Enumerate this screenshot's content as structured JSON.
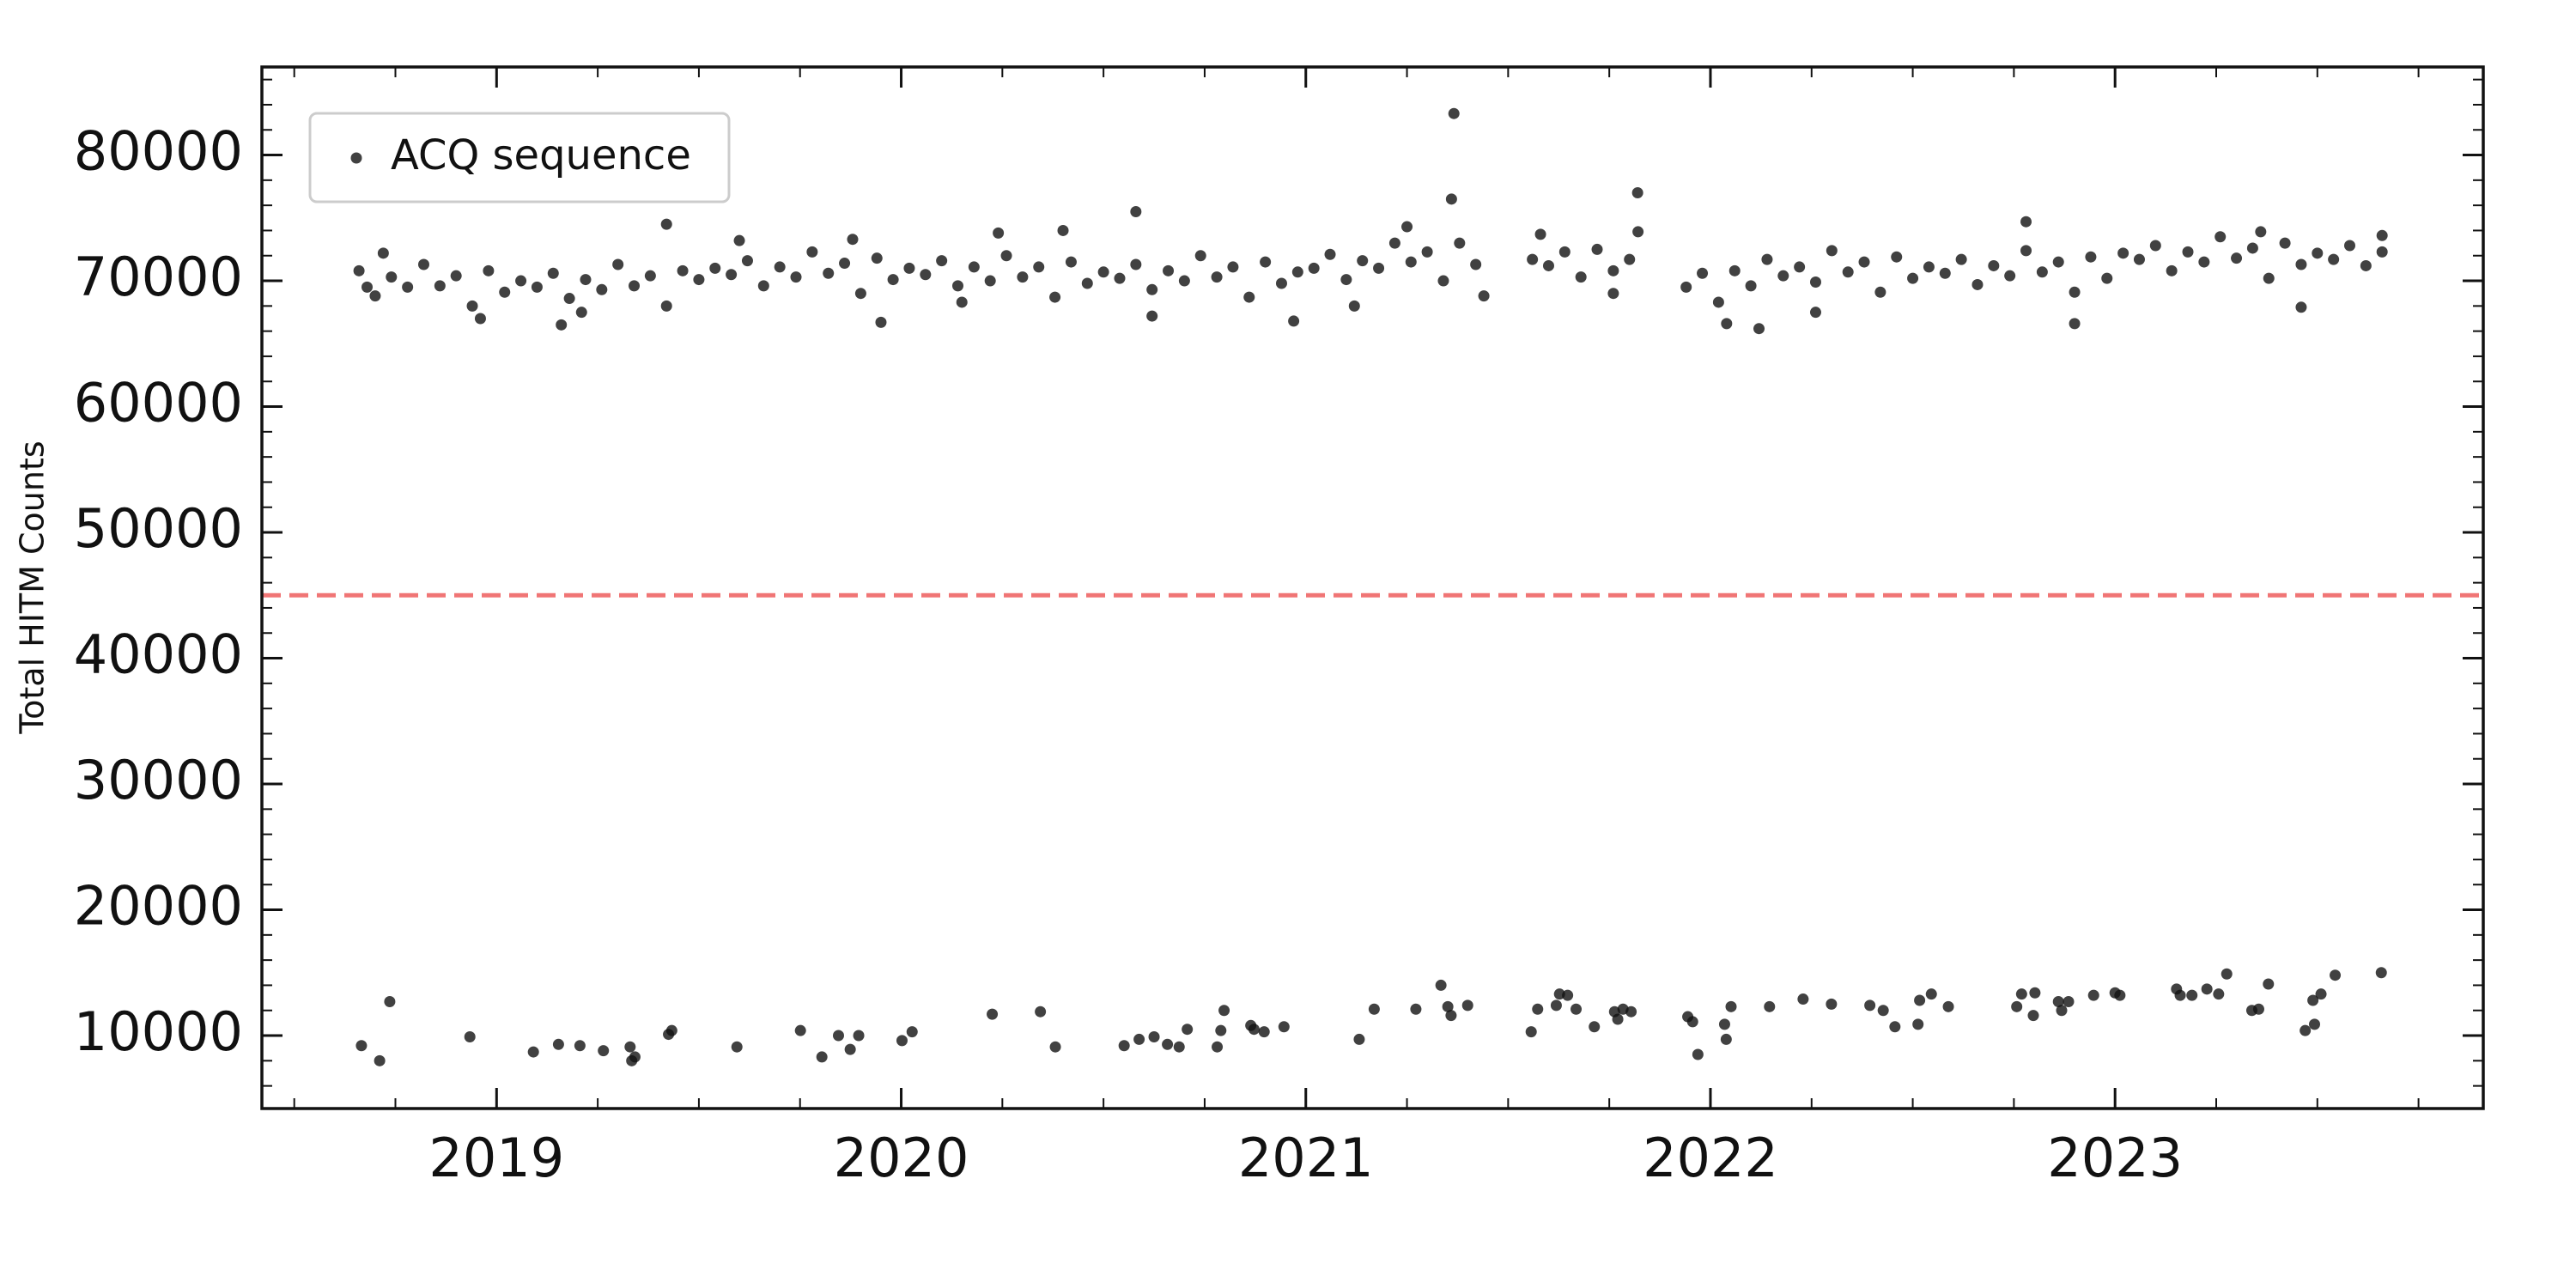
{
  "chart_data": {
    "type": "scatter",
    "ylabel": "Total HITM Counts",
    "xlim": [
      2018.42,
      2023.91
    ],
    "ylim": [
      4200,
      87000
    ],
    "xticks": [
      2019,
      2020,
      2021,
      2022,
      2023
    ],
    "yticks": [
      10000,
      20000,
      30000,
      40000,
      50000,
      60000,
      70000,
      80000
    ],
    "xminorticks": [
      2018.5,
      2018.75,
      2019.25,
      2019.5,
      2019.75,
      2020.25,
      2020.5,
      2020.75,
      2021.25,
      2021.5,
      2021.75,
      2022.25,
      2022.5,
      2022.75,
      2023.25,
      2023.5,
      2023.75
    ],
    "yminorticks": [
      6000,
      8000,
      12000,
      14000,
      16000,
      18000,
      22000,
      24000,
      26000,
      28000,
      32000,
      34000,
      36000,
      38000,
      42000,
      44000,
      46000,
      48000,
      52000,
      54000,
      56000,
      58000,
      62000,
      64000,
      66000,
      68000,
      72000,
      74000,
      76000,
      78000,
      82000,
      84000,
      86000
    ],
    "grid": false,
    "legend": "upper left",
    "hlines": [
      {
        "y": 45000,
        "color": "#f07575",
        "style": "dashed"
      }
    ],
    "series": [
      {
        "name": "ACQ sequence",
        "color": "#111111",
        "x": [
          2018.66,
          2018.7,
          2018.74,
          2018.78,
          2018.82,
          2018.86,
          2018.9,
          2018.94,
          2018.98,
          2019.02,
          2019.06,
          2019.1,
          2019.14,
          2019.18,
          2019.22,
          2019.26,
          2019.3,
          2019.34,
          2019.38,
          2019.42,
          2019.46,
          2019.5,
          2019.54,
          2019.58,
          2019.62,
          2019.66,
          2019.7,
          2019.74,
          2019.78,
          2019.82,
          2019.86,
          2019.9,
          2019.94,
          2019.98,
          2020.02,
          2020.06,
          2020.1,
          2020.14,
          2020.18,
          2020.22,
          2020.26,
          2020.3,
          2020.34,
          2020.38,
          2020.42,
          2020.46,
          2020.5,
          2020.54,
          2020.58,
          2020.62,
          2020.66,
          2020.7,
          2020.74,
          2020.78,
          2020.82,
          2020.86,
          2020.9,
          2020.94,
          2020.98,
          2021.02,
          2021.06,
          2021.1,
          2021.14,
          2021.18,
          2021.22,
          2021.26,
          2021.3,
          2021.34,
          2021.38,
          2021.42,
          2021.56,
          2021.6,
          2021.64,
          2021.68,
          2021.72,
          2021.76,
          2021.8,
          2021.94,
          2021.98,
          2022.02,
          2022.06,
          2022.1,
          2022.14,
          2022.18,
          2022.22,
          2022.26,
          2022.3,
          2022.34,
          2022.38,
          2022.42,
          2022.46,
          2022.5,
          2022.54,
          2022.58,
          2022.62,
          2022.66,
          2022.7,
          2022.74,
          2022.78,
          2022.82,
          2022.86,
          2022.9,
          2022.94,
          2022.98,
          2023.02,
          2023.06,
          2023.1,
          2023.14,
          2023.18,
          2023.22,
          2023.26,
          2023.3,
          2023.34,
          2023.38,
          2023.42,
          2023.46,
          2023.5,
          2023.54,
          2023.58,
          2023.62,
          2023.66,
          2018.68,
          2018.72,
          2018.96,
          2019.16,
          2019.21,
          2019.42,
          2019.6,
          2019.95,
          2019.88,
          2020.15,
          2020.24,
          2020.4,
          2020.58,
          2020.62,
          2020.97,
          2021.12,
          2021.25,
          2021.36,
          2021.366,
          2021.44,
          2021.58,
          2021.76,
          2021.82,
          2021.821,
          2022.04,
          2022.12,
          2022.26,
          2022.78,
          2022.9,
          2023.36,
          2023.46,
          2023.66,
          2018.666,
          2018.711,
          2018.736,
          2018.934,
          2019.091,
          2019.153,
          2019.206,
          2019.264,
          2019.33,
          2019.334,
          2019.342,
          2019.425,
          2019.433,
          2019.594,
          2019.751,
          2019.804,
          2019.845,
          2019.874,
          2019.895,
          2020.002,
          2020.027,
          2020.225,
          2020.344,
          2020.381,
          2020.551,
          2020.588,
          2020.625,
          2020.658,
          2020.687,
          2020.707,
          2020.781,
          2020.79,
          2020.798,
          2020.864,
          2020.872,
          2020.897,
          2020.946,
          2021.132,
          2021.169,
          2021.272,
          2021.334,
          2021.351,
          2021.359,
          2021.4,
          2021.557,
          2021.573,
          2021.619,
          2021.627,
          2021.647,
          2021.668,
          2021.713,
          2021.771,
          2021.763,
          2021.784,
          2021.804,
          2021.944,
          2021.956,
          2021.969,
          2022.035,
          2022.039,
          2022.051,
          2022.146,
          2022.229,
          2022.299,
          2022.394,
          2022.427,
          2022.456,
          2022.513,
          2022.517,
          2022.546,
          2022.588,
          2022.757,
          2022.769,
          2022.802,
          2022.798,
          2022.86,
          2022.868,
          2022.885,
          2022.947,
          2023.0,
          2023.012,
          2023.152,
          2023.161,
          2023.19,
          2023.227,
          2023.256,
          2023.276,
          2023.338,
          2023.355,
          2023.379,
          2023.47,
          2023.493,
          2023.489,
          2023.509,
          2023.544,
          2023.658
        ],
        "values": [
          70800,
          68800,
          70300,
          69500,
          71300,
          69600,
          70400,
          68000,
          70800,
          69100,
          70000,
          69500,
          70600,
          68600,
          70100,
          69300,
          71300,
          69600,
          70400,
          68000,
          70800,
          70100,
          71000,
          70500,
          71600,
          69600,
          71100,
          70300,
          72300,
          70600,
          71400,
          69000,
          71800,
          70100,
          71000,
          70500,
          71600,
          69600,
          71100,
          70000,
          72000,
          70300,
          71100,
          68700,
          71500,
          69800,
          70700,
          70200,
          71300,
          69300,
          70800,
          70000,
          72000,
          70300,
          71100,
          68700,
          71500,
          69800,
          70700,
          71000,
          72100,
          70100,
          71600,
          71000,
          73000,
          71500,
          72300,
          70000,
          73000,
          71300,
          71700,
          71200,
          72300,
          70300,
          72500,
          70800,
          71700,
          69500,
          70600,
          68300,
          70800,
          69600,
          71700,
          70400,
          71100,
          69900,
          72400,
          70700,
          71500,
          69100,
          71900,
          70200,
          71100,
          70600,
          71700,
          69700,
          71200,
          70400,
          72400,
          70700,
          71500,
          69100,
          71900,
          70200,
          72200,
          71700,
          72800,
          70800,
          72300,
          71500,
          73500,
          71800,
          72600,
          70200,
          73000,
          71300,
          72200,
          71700,
          72800,
          71200,
          72300,
          69500,
          72200,
          67000,
          66500,
          67500,
          74500,
          73200,
          66700,
          73300,
          68300,
          73800,
          74000,
          75500,
          67200,
          66800,
          68000,
          74300,
          76500,
          83300,
          68800,
          73700,
          69000,
          77000,
          73900,
          66600,
          66200,
          67500,
          74700,
          66600,
          73900,
          67900,
          73600,
          9200,
          8000,
          12700,
          9900,
          8700,
          9300,
          9200,
          8800,
          9100,
          8000,
          8300,
          10100,
          10400,
          9100,
          10400,
          8300,
          10000,
          8900,
          10000,
          9600,
          10300,
          11700,
          11900,
          9100,
          9200,
          9700,
          9900,
          9300,
          9100,
          10500,
          9100,
          10400,
          12000,
          10800,
          10500,
          10300,
          10700,
          9700,
          12100,
          12100,
          14000,
          12300,
          11600,
          12400,
          10300,
          12100,
          12400,
          13300,
          13200,
          12100,
          10700,
          11300,
          11900,
          12100,
          11900,
          11500,
          11100,
          8500,
          10900,
          9700,
          12300,
          12300,
          12900,
          12500,
          12400,
          12000,
          10700,
          10900,
          12800,
          13300,
          12300,
          12300,
          13300,
          13400,
          11600,
          12700,
          12000,
          12700,
          13200,
          13400,
          13200,
          13700,
          13200,
          13200,
          13700,
          13300,
          14900,
          12000,
          12100,
          14100,
          10400,
          10900,
          12800,
          13300,
          14800,
          15000
        ]
      }
    ]
  }
}
